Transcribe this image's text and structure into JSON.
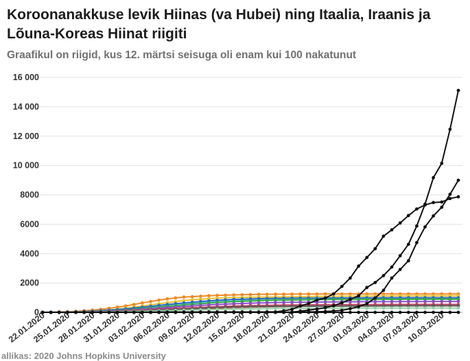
{
  "chart_data": {
    "type": "line",
    "title": "Koroonanakkuse levik Hiinas (va Hubei) ning Itaalia, Iraanis ja Lõuna-Koreas Hiinat riigiti",
    "subtitle": "Graafikul on riigid, kus 12. märtsi seisuga oli enam kui 100 nakatunut",
    "source": "allikas: 2020 Johns Hopkins University",
    "ylim": [
      0,
      16000
    ],
    "y_ticks": [
      0,
      2000,
      4000,
      6000,
      8000,
      10000,
      12000,
      14000,
      16000
    ],
    "y_tick_labels": [
      "0",
      "2000",
      "4000",
      "6000",
      "8000",
      "10 000",
      "12 000",
      "14 000",
      "16 000"
    ],
    "x_tick_labels": [
      "22.01.2020",
      "25.01.2020",
      "28.01.2020",
      "31.01.2020",
      "03.02.2020",
      "06.02.2020",
      "09.02.2020",
      "12.02.2020",
      "15.02.2020",
      "18.02.2020",
      "21.02.2020",
      "24.02.2020",
      "27.02.2020",
      "01.03.2020",
      "04.03.2020",
      "07.03.2020",
      "10.03.2020"
    ],
    "x": [
      "22.01",
      "23.01",
      "24.01",
      "25.01",
      "26.01",
      "27.01",
      "28.01",
      "29.01",
      "30.01",
      "31.01",
      "01.02",
      "02.02",
      "03.02",
      "04.02",
      "05.02",
      "06.02",
      "07.02",
      "08.02",
      "09.02",
      "10.02",
      "11.02",
      "12.02",
      "13.02",
      "14.02",
      "15.02",
      "16.02",
      "17.02",
      "18.02",
      "19.02",
      "20.02",
      "21.02",
      "22.02",
      "23.02",
      "24.02",
      "25.02",
      "26.02",
      "27.02",
      "28.02",
      "29.02",
      "01.03",
      "02.03",
      "03.03",
      "04.03",
      "05.03",
      "06.03",
      "07.03",
      "08.03",
      "09.03",
      "10.03",
      "11.03",
      "12.03"
    ],
    "grid": true,
    "legend": "none",
    "series": [
      {
        "color": "#f08a24",
        "values": [
          5,
          9,
          26,
          44,
          70,
          111,
          151,
          207,
          277,
          354,
          436,
          535,
          642,
          735,
          836,
          914,
          986,
          1046,
          1070,
          1103,
          1132,
          1158,
          1171,
          1190,
          1197,
          1215,
          1225,
          1232,
          1237,
          1237,
          1243,
          1246,
          1246,
          1251,
          1253,
          1253,
          1253,
          1253,
          1253,
          1253,
          1253,
          1253,
          1254,
          1256,
          1256,
          1256,
          1256,
          1256,
          1256,
          1256,
          1256
        ]
      },
      {
        "color": "#e8c035",
        "values": [
          1,
          5,
          10,
          18,
          33,
          50,
          78,
          115,
          160,
          213,
          280,
          358,
          430,
          507,
          590,
          660,
          730,
          800,
          856,
          900,
          935,
          970,
          990,
          1010,
          1020,
          1030,
          1040,
          1045,
          1050,
          1055,
          1060,
          1070,
          1075,
          1080,
          1085,
          1090,
          1095,
          1100,
          1105,
          1110,
          1112,
          1115,
          1117,
          1118,
          1119,
          1120,
          1120,
          1120,
          1121,
          1121,
          1122
        ]
      },
      {
        "color": "#7bc8e0",
        "values": [
          2,
          5,
          8,
          15,
          28,
          45,
          68,
          95,
          128,
          165,
          208,
          258,
          310,
          360,
          410,
          465,
          510,
          560,
          610,
          660,
          700,
          740,
          780,
          810,
          840,
          860,
          880,
          900,
          915,
          930,
          940,
          950,
          960,
          965,
          970,
          975,
          980,
          985,
          990,
          992,
          994,
          996,
          998,
          1000,
          1000,
          1000,
          1000,
          1000,
          1000,
          1000,
          1000
        ]
      },
      {
        "color": "#2a6bb5",
        "values": [
          5,
          7,
          15,
          25,
          40,
          60,
          85,
          115,
          150,
          190,
          235,
          290,
          350,
          410,
          470,
          530,
          590,
          640,
          690,
          740,
          780,
          820,
          850,
          880,
          900,
          915,
          930,
          940,
          950,
          955,
          960,
          965,
          968,
          970,
          972,
          974,
          976,
          978,
          980,
          982,
          984,
          986,
          988,
          990,
          990,
          990,
          990,
          990,
          990,
          990,
          990
        ]
      },
      {
        "color": "#35a84a",
        "values": [
          2,
          4,
          8,
          14,
          22,
          34,
          50,
          70,
          95,
          125,
          160,
          200,
          245,
          295,
          345,
          400,
          450,
          500,
          545,
          590,
          630,
          670,
          700,
          730,
          755,
          775,
          795,
          810,
          825,
          835,
          845,
          855,
          860,
          865,
          870,
          872,
          874,
          876,
          878,
          880,
          882,
          884,
          886,
          888,
          890,
          890,
          890,
          890,
          890,
          890,
          890
        ]
      },
      {
        "color": "#8a4fc4",
        "values": [
          1,
          3,
          6,
          12,
          20,
          30,
          44,
          60,
          80,
          104,
          130,
          160,
          195,
          235,
          275,
          315,
          355,
          395,
          435,
          470,
          505,
          535,
          560,
          585,
          605,
          625,
          640,
          655,
          665,
          675,
          685,
          690,
          695,
          700,
          705,
          710,
          715,
          720,
          722,
          724,
          726,
          728,
          730,
          732,
          734,
          736,
          738,
          740,
          740,
          740,
          740
        ]
      },
      {
        "color": "#c44569",
        "values": [
          1,
          2,
          4,
          8,
          13,
          20,
          30,
          42,
          57,
          75,
          95,
          118,
          143,
          170,
          198,
          227,
          255,
          285,
          312,
          340,
          365,
          390,
          410,
          430,
          445,
          460,
          472,
          482,
          490,
          497,
          503,
          508,
          512,
          516,
          520,
          523,
          526,
          528,
          530,
          532,
          534,
          536,
          538,
          540,
          540,
          540,
          540,
          540,
          540,
          540,
          540
        ]
      },
      {
        "color": "#e24c3c",
        "values": [
          1,
          2,
          3,
          5,
          8,
          12,
          18,
          25,
          34,
          45,
          58,
          72,
          88,
          105,
          124,
          145,
          168,
          192,
          215,
          240,
          262,
          285,
          305,
          325,
          340,
          355,
          368,
          380,
          390,
          398,
          405,
          410,
          415,
          420,
          425,
          430,
          432,
          434,
          436,
          438,
          440,
          442,
          444,
          446,
          446,
          446,
          446,
          446,
          446,
          446,
          446
        ]
      },
      {
        "color": "#5a5a5a",
        "values": [
          1,
          2,
          4,
          7,
          11,
          16,
          23,
          32,
          42,
          54,
          68,
          84,
          102,
          122,
          144,
          168,
          193,
          218,
          243,
          268,
          292,
          315,
          335,
          353,
          368,
          380,
          390,
          398,
          405,
          410,
          415,
          418,
          420,
          422,
          424,
          426,
          428,
          430,
          432,
          434,
          436,
          438,
          440,
          442,
          444,
          446,
          448,
          450,
          450,
          450,
          450
        ]
      },
      {
        "color": "#9bd0a8",
        "values": [
          0,
          1,
          2,
          4,
          7,
          11,
          16,
          22,
          30,
          39,
          49,
          60,
          72,
          85,
          99,
          113,
          128,
          143,
          158,
          172,
          186,
          199,
          211,
          222,
          232,
          241,
          249,
          256,
          262,
          267,
          271,
          275,
          278,
          281,
          283,
          285,
          287,
          289,
          290,
          291,
          292,
          293,
          294,
          295,
          296,
          296,
          296,
          296,
          296,
          296,
          296
        ]
      },
      {
        "color": "#111111",
        "values": [
          0,
          0,
          0,
          0,
          0,
          0,
          0,
          0,
          0,
          0,
          0,
          0,
          0,
          0,
          0,
          0,
          0,
          0,
          0,
          0,
          0,
          0,
          0,
          0,
          0,
          0,
          0,
          0,
          0,
          0,
          0,
          0,
          0,
          0,
          0,
          0,
          0,
          0,
          0,
          0,
          0,
          0,
          0,
          0,
          0,
          0,
          0,
          0,
          0,
          0,
          0
        ]
      },
      {
        "color": "#111111",
        "values": [
          0,
          0,
          0,
          0,
          0,
          0,
          0,
          0,
          0,
          0,
          0,
          0,
          0,
          0,
          0,
          0,
          0,
          0,
          0,
          0,
          0,
          0,
          0,
          0,
          0,
          0,
          0,
          0,
          0,
          3,
          17,
          79,
          155,
          229,
          322,
          453,
          655,
          888,
          1128,
          1694,
          2036,
          2502,
          3089,
          3858,
          4636,
          5883,
          7375,
          9172,
          10149,
          12462,
          15113
        ]
      },
      {
        "color": "#111111",
        "values": [
          0,
          0,
          0,
          0,
          0,
          0,
          0,
          0,
          0,
          0,
          0,
          0,
          0,
          0,
          0,
          0,
          0,
          0,
          0,
          0,
          0,
          0,
          0,
          0,
          0,
          0,
          0,
          0,
          0,
          2,
          5,
          18,
          28,
          43,
          61,
          95,
          139,
          245,
          388,
          593,
          978,
          1501,
          2336,
          2922,
          3513,
          4747,
          5823,
          6566,
          7161,
          8042,
          9000
        ]
      },
      {
        "color": "#111111",
        "values": [
          1,
          1,
          2,
          2,
          3,
          4,
          4,
          4,
          4,
          11,
          12,
          15,
          15,
          16,
          19,
          23,
          24,
          24,
          25,
          27,
          28,
          28,
          28,
          28,
          28,
          29,
          30,
          31,
          31,
          104,
          204,
          433,
          602,
          833,
          977,
          1261,
          1766,
          2337,
          3150,
          3736,
          4335,
          5186,
          5621,
          6088,
          6593,
          7041,
          7314,
          7478,
          7513,
          7755,
          7869
        ]
      }
    ]
  }
}
